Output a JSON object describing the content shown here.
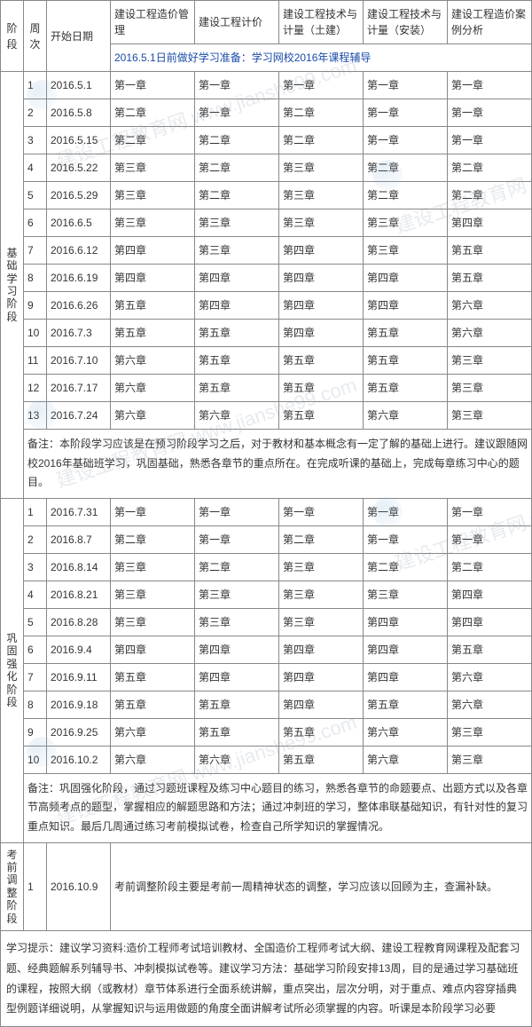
{
  "header": {
    "stage": "阶段",
    "week": "周次",
    "date": "开始日期",
    "subjects": [
      "建设工程造价管理",
      "建设工程计价",
      "建设工程技术与计量（土建）",
      "建设工程技术与计量（安装）",
      "建设工程造价案例分析"
    ],
    "prep": "2016.5.1日前做好学习准备：学习网校2016年课程辅导"
  },
  "stage1": {
    "name": "基础学习阶段",
    "rows": [
      {
        "w": "1",
        "d": "2016.5.1",
        "c": [
          "第一章",
          "第一章",
          "第一章",
          "第一章",
          "第一章"
        ]
      },
      {
        "w": "2",
        "d": "2016.5.8",
        "c": [
          "第二章",
          "第一章",
          "第二章",
          "第一章",
          "第一章"
        ]
      },
      {
        "w": "3",
        "d": "2016.5.15",
        "c": [
          "第二章",
          "第二章",
          "第二章",
          "第一章",
          "第一章"
        ]
      },
      {
        "w": "4",
        "d": "2016.5.22",
        "c": [
          "第三章",
          "第二章",
          "第三章",
          "第二章",
          "第二章"
        ]
      },
      {
        "w": "5",
        "d": "2016.5.29",
        "c": [
          "第三章",
          "第二章",
          "第三章",
          "第二章",
          "第二章"
        ]
      },
      {
        "w": "6",
        "d": "2016.6.5",
        "c": [
          "第三章",
          "第三章",
          "第三章",
          "第三章",
          "第四章"
        ]
      },
      {
        "w": "7",
        "d": "2016.6.12",
        "c": [
          "第四章",
          "第三章",
          "第四章",
          "第三章",
          "第五章"
        ]
      },
      {
        "w": "8",
        "d": "2016.6.19",
        "c": [
          "第四章",
          "第四章",
          "第四章",
          "第四章",
          "第五章"
        ]
      },
      {
        "w": "9",
        "d": "2016.6.26",
        "c": [
          "第五章",
          "第四章",
          "第四章",
          "第四章",
          "第六章"
        ]
      },
      {
        "w": "10",
        "d": "2016.7.3",
        "c": [
          "第五章",
          "第五章",
          "第四章",
          "第五章",
          "第六章"
        ]
      },
      {
        "w": "11",
        "d": "2016.7.10",
        "c": [
          "第六章",
          "第五章",
          "第五章",
          "第五章",
          "第三章"
        ]
      },
      {
        "w": "12",
        "d": "2016.7.17",
        "c": [
          "第六章",
          "第五章",
          "第五章",
          "第五章",
          "第三章"
        ]
      },
      {
        "w": "13",
        "d": "2016.7.24",
        "c": [
          "第六章",
          "第六章",
          "第五章",
          "第六章",
          "第三章"
        ]
      }
    ],
    "note": "备注：本阶段学习应该是在预习阶段学习之后，对于教材和基本概念有一定了解的基础上进行。建议跟随网校2016年基础班学习，巩固基础，熟悉各章节的重点所在。在完成听课的基础上，完成每章练习中心的题目。"
  },
  "stage2": {
    "name": "巩固强化阶段",
    "rows": [
      {
        "w": "1",
        "d": "2016.7.31",
        "c": [
          "第一章",
          "第一章",
          "第一章",
          "第一章",
          "第一章"
        ]
      },
      {
        "w": "2",
        "d": "2016.8.7",
        "c": [
          "第二章",
          "第一章",
          "第二章",
          "第一章",
          "第一章"
        ]
      },
      {
        "w": "3",
        "d": "2016.8.14",
        "c": [
          "第三章",
          "第二章",
          "第三章",
          "第二章",
          "第二章"
        ]
      },
      {
        "w": "4",
        "d": "2016.8.21",
        "c": [
          "第三章",
          "第三章",
          "第三章",
          "第三章",
          "第四章"
        ]
      },
      {
        "w": "5",
        "d": "2016.8.28",
        "c": [
          "第三章",
          "第三章",
          "第三章",
          "第四章",
          "第四章"
        ]
      },
      {
        "w": "6",
        "d": "2016.9.4",
        "c": [
          "第四章",
          "第四章",
          "第四章",
          "第四章",
          "第五章"
        ]
      },
      {
        "w": "7",
        "d": "2016.9.11",
        "c": [
          "第五章",
          "第四章",
          "第四章",
          "第四章",
          "第六章"
        ]
      },
      {
        "w": "8",
        "d": "2016.9.18",
        "c": [
          "第五章",
          "第五章",
          "第四章",
          "第五章",
          "第六章"
        ]
      },
      {
        "w": "9",
        "d": "2016.9.25",
        "c": [
          "第六章",
          "第五章",
          "第五章",
          "第六章",
          "第三章"
        ]
      },
      {
        "w": "10",
        "d": "2016.10.2",
        "c": [
          "第六章",
          "第六章",
          "第五章",
          "第六章",
          "第三章"
        ]
      }
    ],
    "note": "备注：巩固强化阶段，通过习题班课程及练习中心题目的练习，熟悉各章节的命题要点、出题方式以及各章节高频考点的题型，掌握相应的解题思路和方法；通过冲刺班的学习，整体串联基础知识，有针对性的复习重点知识。最后几周通过练习考前模拟试卷，检查自己所学知识的掌握情况。"
  },
  "stage3": {
    "name": "考前调整阶段",
    "w": "1",
    "d": "2016.10.9",
    "text": "考前调整阶段主要是考前一周精神状态的调整，学习应该以回顾为主，查漏补缺。"
  },
  "footer": "学习提示：建议学习资料:造价工程师考试培训教材、全国造价工程师考试大纲、建设工程教育网课程及配套习题、经典题解系列辅导书、冲刺模拟试卷等。建议学习方法：基础学习阶段安排13周，目的是通过学习基础班的课程，按照大纲（或教材）章节体系进行全面系统讲解，重点突出，层次分明，对于重点、难点内容穿插典型例题详细说明，从掌握知识与运用做题的角度全面讲解考试所必须掌握的内容。听课是本阶段学习必要"
}
